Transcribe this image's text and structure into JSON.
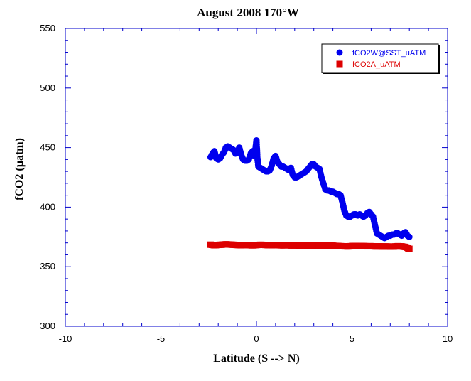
{
  "chart_data": {
    "type": "scatter",
    "title": "August 2008 170°W",
    "xlabel": "Latitude (S --> N)",
    "ylabel": "fCO2 (µatm)",
    "xlim": [
      -10,
      10
    ],
    "ylim": [
      300,
      550
    ],
    "xticks": [
      "-10",
      "-5",
      "0",
      "5",
      "10"
    ],
    "yticks": [
      "300",
      "350",
      "400",
      "450",
      "500",
      "550"
    ],
    "grid": false,
    "legend_position": "top-right",
    "colors": {
      "frame": "#0000cc",
      "series1": "#0000ee",
      "series2": "#dd0000"
    },
    "series": [
      {
        "name": "fCO2W@SST_uATM",
        "marker": "circle",
        "x": [
          -2.4,
          -2.3,
          -2.2,
          -2.1,
          -2.0,
          -1.9,
          -1.8,
          -1.7,
          -1.6,
          -1.5,
          -1.4,
          -1.3,
          -1.2,
          -1.1,
          -1.0,
          -0.9,
          -0.8,
          -0.7,
          -0.6,
          -0.5,
          -0.4,
          -0.3,
          -0.2,
          -0.1,
          0.0,
          0.05,
          0.1,
          0.2,
          0.3,
          0.4,
          0.5,
          0.6,
          0.7,
          0.8,
          0.9,
          1.0,
          1.1,
          1.2,
          1.3,
          1.4,
          1.5,
          1.6,
          1.7,
          1.8,
          1.9,
          2.0,
          2.1,
          2.2,
          2.3,
          2.4,
          2.5,
          2.6,
          2.7,
          2.8,
          2.9,
          3.0,
          3.1,
          3.2,
          3.3,
          3.4,
          3.5,
          3.6,
          3.7,
          3.8,
          3.9,
          4.0,
          4.1,
          4.2,
          4.3,
          4.4,
          4.5,
          4.6,
          4.7,
          4.8,
          4.9,
          5.0,
          5.1,
          5.2,
          5.3,
          5.4,
          5.5,
          5.6,
          5.7,
          5.8,
          5.9,
          6.0,
          6.1,
          6.2,
          6.3,
          6.4,
          6.5,
          6.6,
          6.7,
          6.8,
          6.9,
          7.0,
          7.1,
          7.2,
          7.3,
          7.4,
          7.5,
          7.6,
          7.7,
          7.8,
          7.9,
          8.0
        ],
        "y": [
          442,
          445,
          447,
          441,
          440,
          441,
          444,
          446,
          450,
          451,
          450,
          449,
          448,
          445,
          446,
          450,
          444,
          440,
          439,
          439,
          440,
          445,
          447,
          443,
          456,
          441,
          434,
          433,
          432,
          431,
          430,
          430,
          431,
          435,
          441,
          443,
          438,
          436,
          434,
          434,
          433,
          432,
          431,
          433,
          427,
          425,
          425,
          426,
          427,
          428,
          429,
          430,
          432,
          434,
          436,
          436,
          434,
          433,
          432,
          425,
          420,
          415,
          414,
          414,
          413,
          413,
          412,
          411,
          411,
          410,
          404,
          397,
          393,
          392,
          392,
          393,
          394,
          394,
          393,
          394,
          393,
          392,
          393,
          395,
          396,
          394,
          392,
          385,
          378,
          377,
          376,
          375,
          374,
          375,
          376,
          376,
          377,
          377,
          378,
          378,
          377,
          376,
          378,
          379,
          376,
          375
        ]
      },
      {
        "name": "fCO2A_uATM",
        "marker": "square",
        "x": [
          -2.4,
          -2.2,
          -2.0,
          -1.8,
          -1.6,
          -1.4,
          -1.2,
          -1.0,
          -0.8,
          -0.6,
          -0.4,
          -0.2,
          0.0,
          0.2,
          0.4,
          0.6,
          0.8,
          1.0,
          1.2,
          1.4,
          1.6,
          1.8,
          2.0,
          2.2,
          2.4,
          2.6,
          2.8,
          3.0,
          3.2,
          3.4,
          3.6,
          3.8,
          4.0,
          4.2,
          4.4,
          4.6,
          4.8,
          5.0,
          5.2,
          5.4,
          5.6,
          5.8,
          6.0,
          6.2,
          6.4,
          6.6,
          6.8,
          7.0,
          7.2,
          7.4,
          7.6,
          7.8,
          8.0
        ],
        "y": [
          368.5,
          368.0,
          368.3,
          368.5,
          368.8,
          368.6,
          368.4,
          368.2,
          368.0,
          368.3,
          368.1,
          367.9,
          368.2,
          368.4,
          368.3,
          368.1,
          368.0,
          368.2,
          368.0,
          367.9,
          368.1,
          367.8,
          368.0,
          367.7,
          367.9,
          367.8,
          367.6,
          367.8,
          367.9,
          367.7,
          367.5,
          367.8,
          367.6,
          367.4,
          367.2,
          367.1,
          367.0,
          367.3,
          367.4,
          367.2,
          367.3,
          367.1,
          367.2,
          367.0,
          367.1,
          366.9,
          367.0,
          366.8,
          366.9,
          367.2,
          367.0,
          366.5,
          365.0
        ]
      }
    ]
  }
}
